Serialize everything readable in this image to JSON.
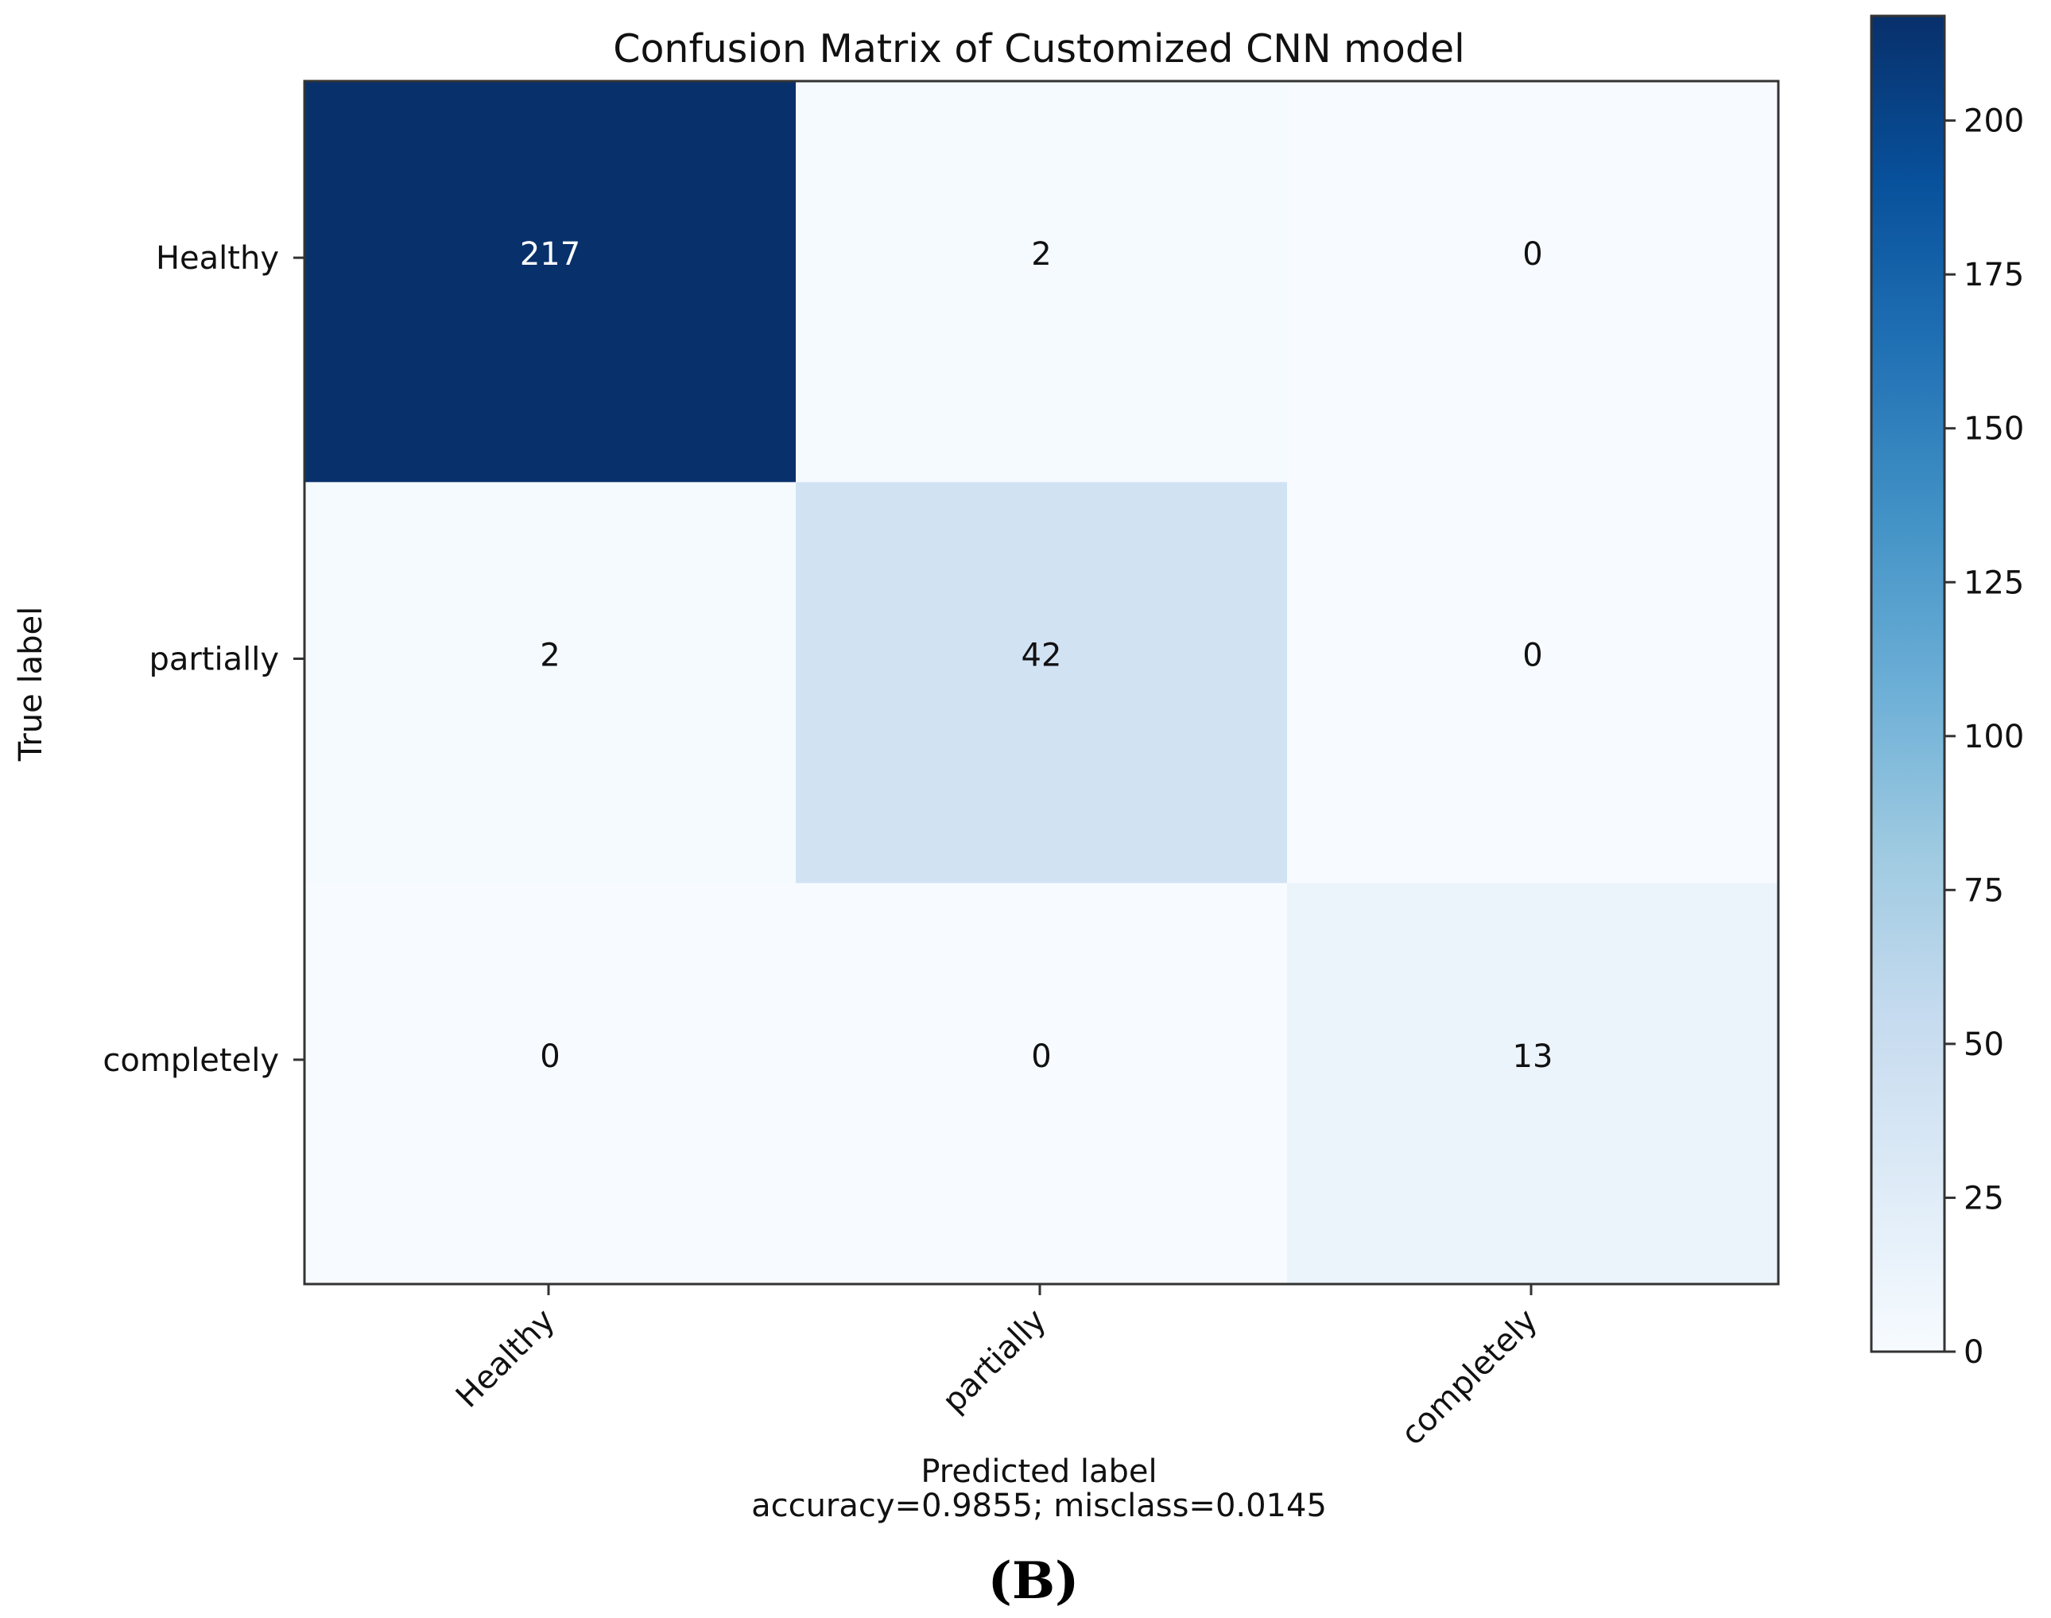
{
  "chart_data": {
    "type": "heatmap",
    "title": "Confusion Matrix of Customized  CNN model",
    "xlabel": "Predicted label",
    "xlabel_sub": "accuracy=0.9855; misclass=0.0145",
    "ylabel": "True label",
    "row_labels": [
      "Healthy",
      "partially",
      "completely"
    ],
    "col_labels": [
      "Healthy",
      "partially",
      "completely"
    ],
    "values": [
      [
        217,
        2,
        0
      ],
      [
        2,
        42,
        0
      ],
      [
        0,
        0,
        13
      ]
    ],
    "colormap": "Blues",
    "colorbar": {
      "range": [
        0,
        217
      ],
      "ticks": [
        0,
        25,
        50,
        75,
        100,
        125,
        150,
        175,
        200
      ],
      "tick_labels": [
        "0",
        "25",
        "50",
        "75",
        "100",
        "125",
        "150",
        "175",
        "200"
      ]
    },
    "grid": false,
    "legend": "colorbar-right"
  },
  "caption": "(B)"
}
